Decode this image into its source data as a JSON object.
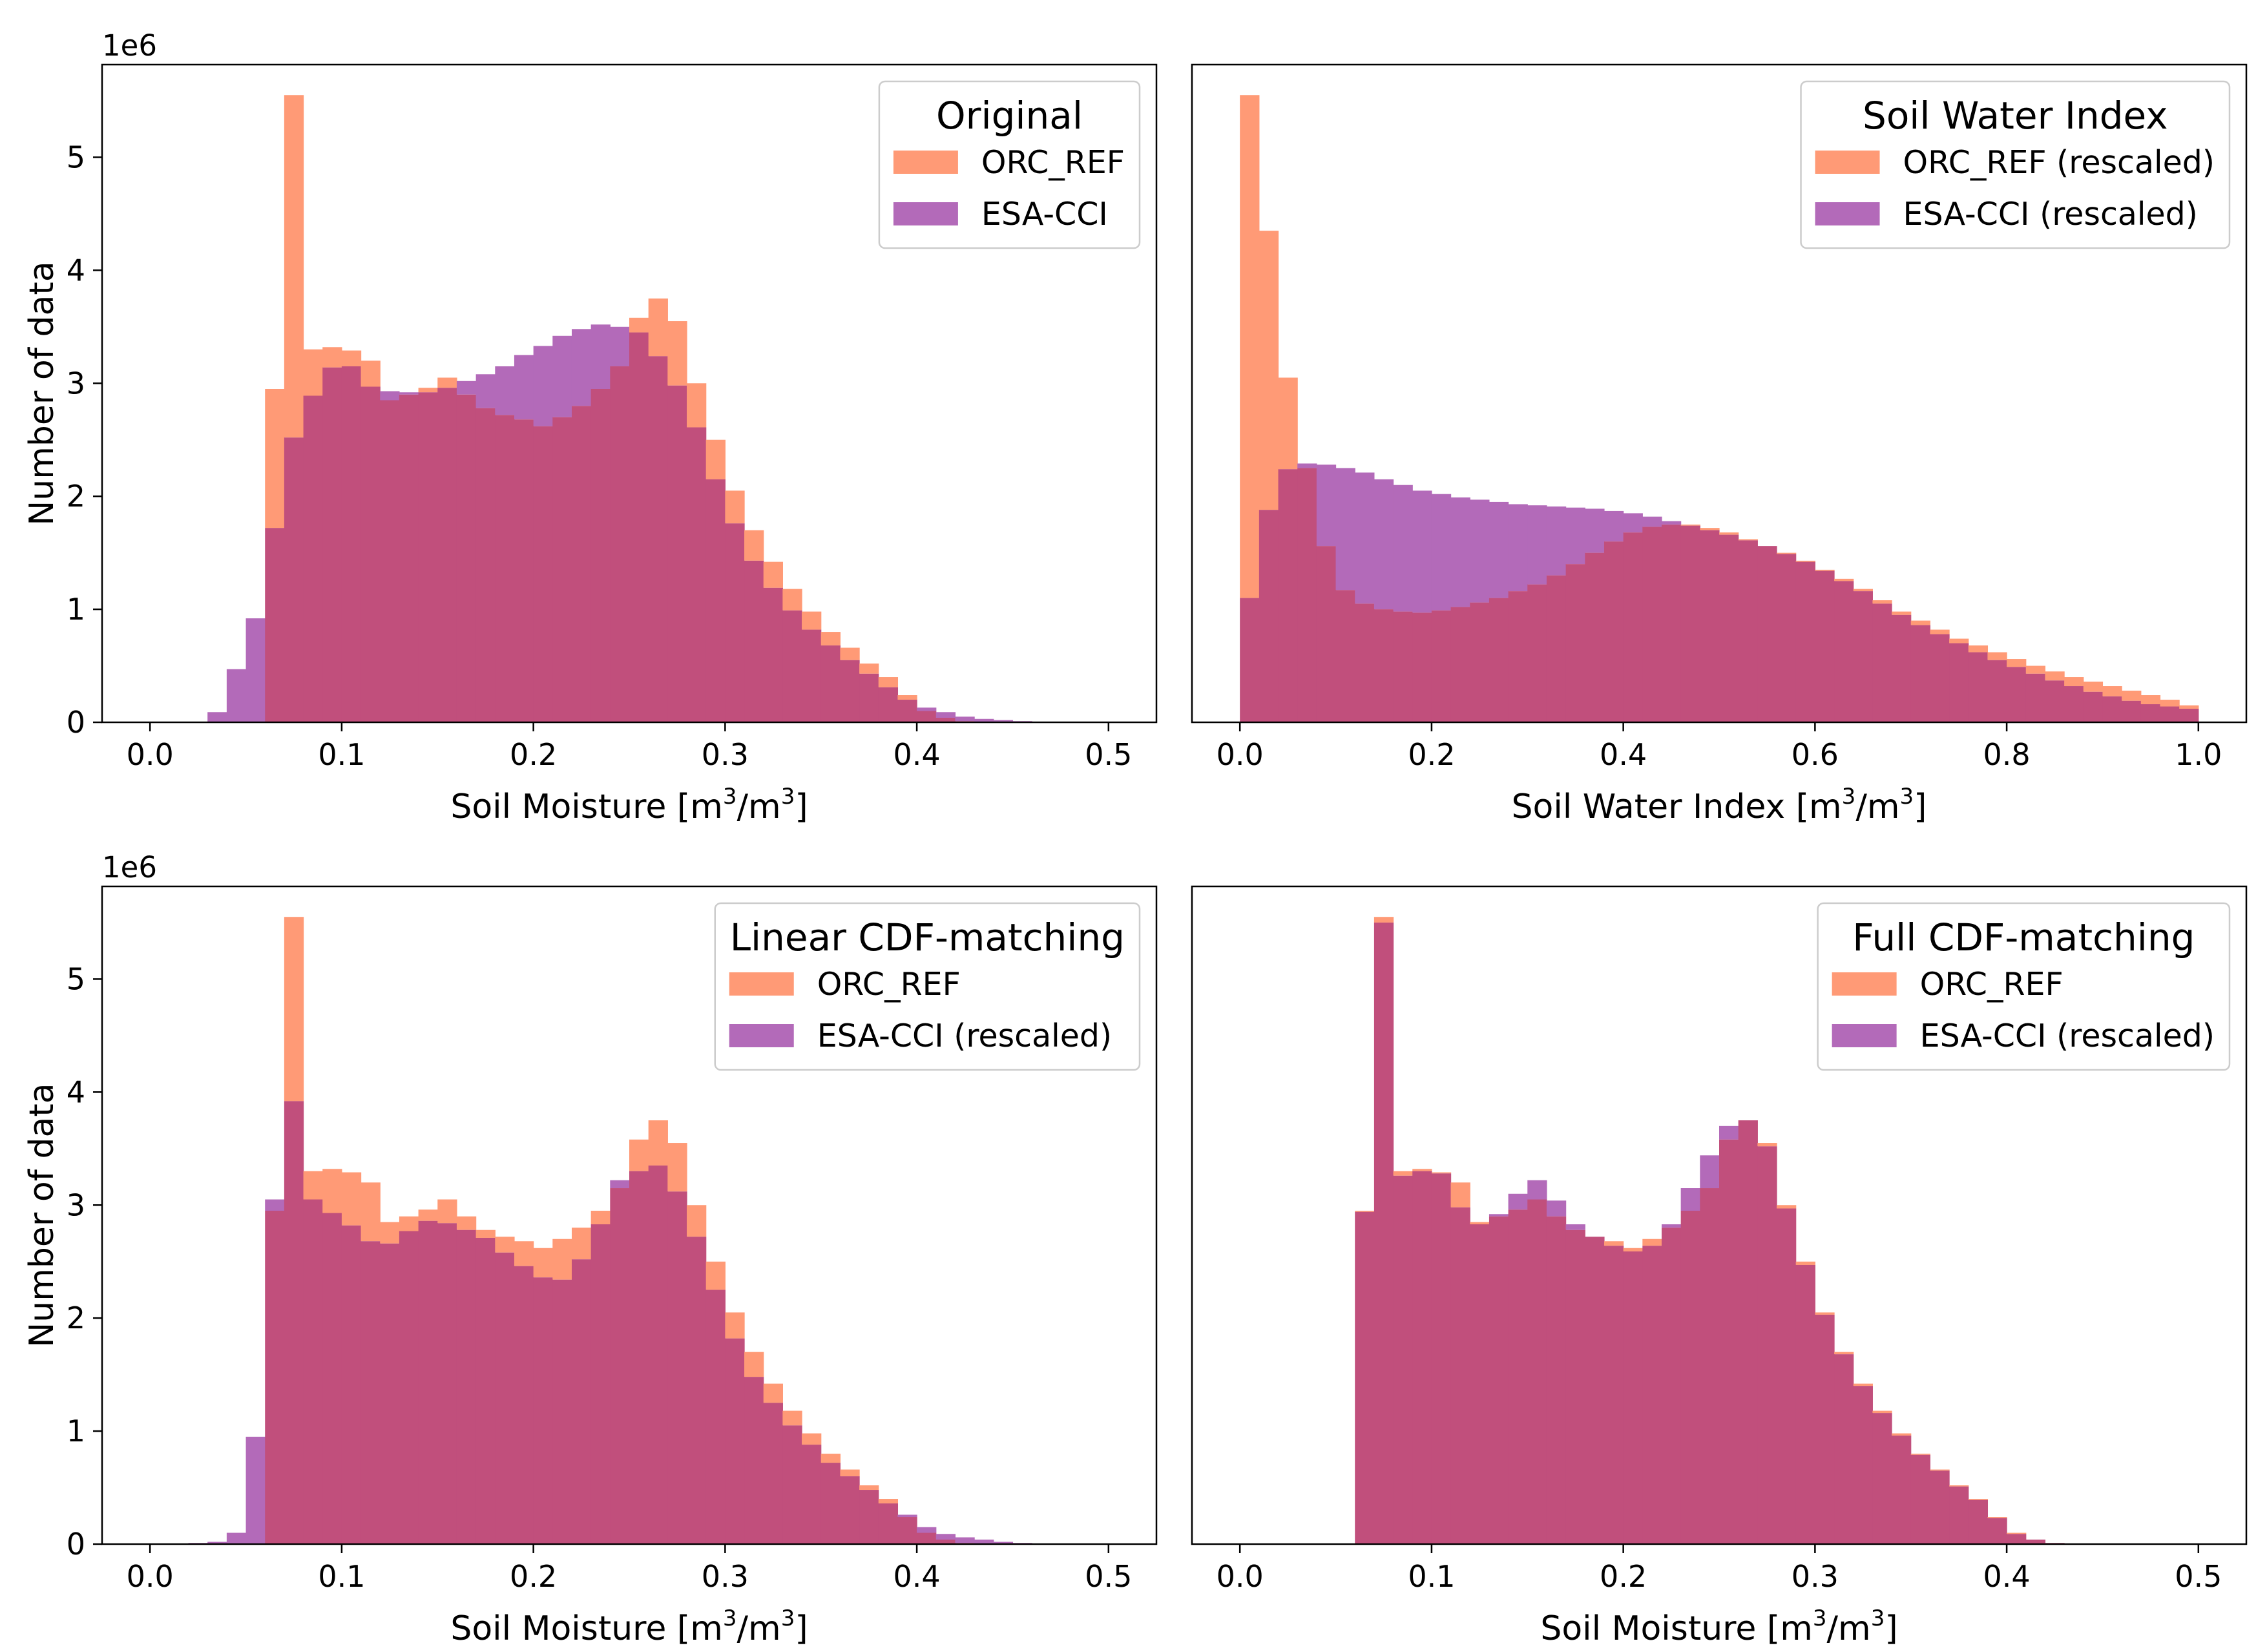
{
  "figure": {
    "ylabel": "Number of data"
  },
  "colors": {
    "orc": "#FF9A76",
    "esa": "#B36AB9",
    "overlap": "#C14F7C",
    "frame": "#000000"
  },
  "chart_data": [
    {
      "id": "original",
      "type": "histogram",
      "title": "Original",
      "xlabel": "Soil Moisture [m3/m3]",
      "xlabel_main": "Soil Moisture [m",
      "xlabel_mid": "/m",
      "xlabel_end": "]",
      "xlabel_sup": "3",
      "ylabel": "Number of data",
      "y_offset_label": "1e6",
      "xlim": [
        -0.025,
        0.525
      ],
      "ylim": [
        0,
        5.82
      ],
      "xticks": [
        0.0,
        0.1,
        0.2,
        0.3,
        0.4,
        0.5
      ],
      "xtick_labels": [
        "0.0",
        "0.1",
        "0.2",
        "0.3",
        "0.4",
        "0.5"
      ],
      "yticks": [
        0,
        1,
        2,
        3,
        4,
        5
      ],
      "ytick_labels": [
        "0",
        "1",
        "2",
        "3",
        "4",
        "5"
      ],
      "legend": {
        "title": "Original",
        "entries": [
          "ORC_REF",
          "ESA-CCI"
        ],
        "location": "upper right"
      },
      "bins": {
        "start": 0.0,
        "width": 0.01
      },
      "series": [
        {
          "name": "ORC_REF",
          "values": [
            0,
            0,
            0,
            0,
            0,
            0,
            2.95,
            5.55,
            3.3,
            3.32,
            3.29,
            3.2,
            2.85,
            2.9,
            2.96,
            3.05,
            2.9,
            2.78,
            2.72,
            2.68,
            2.62,
            2.7,
            2.8,
            2.95,
            3.15,
            3.58,
            3.75,
            3.55,
            3.0,
            2.5,
            2.05,
            1.7,
            1.42,
            1.18,
            0.98,
            0.8,
            0.66,
            0.52,
            0.4,
            0.24,
            0.1,
            0.04,
            0.01,
            0,
            0,
            0,
            0,
            0,
            0,
            0
          ]
        },
        {
          "name": "ESA-CCI",
          "values": [
            0,
            0,
            0,
            0.09,
            0.47,
            0.92,
            1.72,
            2.52,
            2.89,
            3.14,
            3.15,
            2.97,
            2.93,
            2.92,
            2.92,
            2.96,
            3.02,
            3.08,
            3.15,
            3.25,
            3.33,
            3.42,
            3.48,
            3.52,
            3.5,
            3.45,
            3.24,
            2.98,
            2.61,
            2.15,
            1.76,
            1.43,
            1.19,
            0.99,
            0.82,
            0.68,
            0.55,
            0.43,
            0.31,
            0.2,
            0.13,
            0.09,
            0.05,
            0.03,
            0.02,
            0.01,
            0,
            0,
            0,
            0
          ]
        }
      ]
    },
    {
      "id": "swi",
      "type": "histogram",
      "title": "Soil Water Index",
      "xlabel": "Soil Water Index [m3/m3]",
      "xlabel_main": "Soil Water Index [m",
      "xlabel_mid": "/m",
      "xlabel_end": "]",
      "xlabel_sup": "3",
      "ylabel": "",
      "y_offset_label": "",
      "xlim": [
        -0.05,
        1.05
      ],
      "ylim": [
        0,
        5.82
      ],
      "xticks": [
        0.0,
        0.2,
        0.4,
        0.6,
        0.8,
        1.0
      ],
      "xtick_labels": [
        "0.0",
        "0.2",
        "0.4",
        "0.6",
        "0.8",
        "1.0"
      ],
      "yticks": [],
      "ytick_labels": [],
      "legend": {
        "title": "Soil Water Index",
        "entries": [
          "ORC_REF (rescaled)",
          "ESA-CCI (rescaled)"
        ],
        "location": "upper right"
      },
      "bins": {
        "start": 0.0,
        "width": 0.02
      },
      "series": [
        {
          "name": "ORC_REF (rescaled)",
          "values": [
            5.55,
            4.35,
            3.05,
            2.25,
            1.56,
            1.17,
            1.05,
            1.0,
            0.98,
            0.97,
            0.99,
            1.02,
            1.06,
            1.1,
            1.16,
            1.22,
            1.3,
            1.4,
            1.5,
            1.6,
            1.68,
            1.73,
            1.75,
            1.75,
            1.72,
            1.68,
            1.62,
            1.56,
            1.5,
            1.43,
            1.35,
            1.27,
            1.18,
            1.08,
            0.98,
            0.9,
            0.82,
            0.74,
            0.68,
            0.62,
            0.56,
            0.5,
            0.45,
            0.4,
            0.36,
            0.32,
            0.28,
            0.24,
            0.2,
            0.15
          ]
        },
        {
          "name": "ESA-CCI (rescaled)",
          "values": [
            1.1,
            1.88,
            2.24,
            2.29,
            2.28,
            2.25,
            2.21,
            2.15,
            2.1,
            2.05,
            2.02,
            1.99,
            1.97,
            1.95,
            1.93,
            1.92,
            1.91,
            1.9,
            1.89,
            1.87,
            1.85,
            1.82,
            1.78,
            1.74,
            1.7,
            1.66,
            1.61,
            1.56,
            1.49,
            1.42,
            1.34,
            1.25,
            1.16,
            1.05,
            0.95,
            0.86,
            0.78,
            0.7,
            0.62,
            0.55,
            0.49,
            0.43,
            0.37,
            0.32,
            0.27,
            0.23,
            0.19,
            0.16,
            0.14,
            0.12
          ]
        }
      ]
    },
    {
      "id": "linear",
      "type": "histogram",
      "title": "Linear CDF-matching",
      "xlabel": "Soil Moisture [m3/m3]",
      "xlabel_main": "Soil Moisture [m",
      "xlabel_mid": "/m",
      "xlabel_end": "]",
      "xlabel_sup": "3",
      "ylabel": "Number of data",
      "y_offset_label": "1e6",
      "xlim": [
        -0.025,
        0.525
      ],
      "ylim": [
        0,
        5.82
      ],
      "xticks": [
        0.0,
        0.1,
        0.2,
        0.3,
        0.4,
        0.5
      ],
      "xtick_labels": [
        "0.0",
        "0.1",
        "0.2",
        "0.3",
        "0.4",
        "0.5"
      ],
      "yticks": [
        0,
        1,
        2,
        3,
        4,
        5
      ],
      "ytick_labels": [
        "0",
        "1",
        "2",
        "3",
        "4",
        "5"
      ],
      "legend": {
        "title": "Linear CDF-matching",
        "entries": [
          "ORC_REF",
          "ESA-CCI (rescaled)"
        ],
        "location": "upper right"
      },
      "bins": {
        "start": 0.0,
        "width": 0.01
      },
      "series": [
        {
          "name": "ORC_REF",
          "values": [
            0,
            0,
            0,
            0,
            0,
            0,
            2.95,
            5.55,
            3.3,
            3.32,
            3.29,
            3.2,
            2.85,
            2.9,
            2.96,
            3.05,
            2.9,
            2.78,
            2.72,
            2.68,
            2.62,
            2.7,
            2.8,
            2.95,
            3.15,
            3.58,
            3.75,
            3.55,
            3.0,
            2.5,
            2.05,
            1.7,
            1.42,
            1.18,
            0.98,
            0.8,
            0.66,
            0.52,
            0.4,
            0.24,
            0.1,
            0.04,
            0.01,
            0,
            0,
            0,
            0,
            0,
            0,
            0
          ]
        },
        {
          "name": "ESA-CCI (rescaled)",
          "values": [
            0,
            0,
            0.01,
            0.02,
            0.1,
            0.95,
            3.05,
            3.92,
            3.05,
            2.93,
            2.82,
            2.68,
            2.66,
            2.77,
            2.86,
            2.84,
            2.78,
            2.71,
            2.58,
            2.46,
            2.36,
            2.34,
            2.52,
            2.83,
            3.22,
            3.3,
            3.35,
            3.12,
            2.72,
            2.25,
            1.82,
            1.48,
            1.25,
            1.05,
            0.88,
            0.72,
            0.6,
            0.48,
            0.36,
            0.26,
            0.15,
            0.09,
            0.06,
            0.04,
            0.02,
            0.01,
            0.005,
            0,
            0,
            0
          ]
        }
      ]
    },
    {
      "id": "full",
      "type": "histogram",
      "title": "Full CDF-matching",
      "xlabel": "Soil Moisture [m3/m3]",
      "xlabel_main": "Soil Moisture [m",
      "xlabel_mid": "/m",
      "xlabel_end": "]",
      "xlabel_sup": "3",
      "ylabel": "",
      "y_offset_label": "",
      "xlim": [
        -0.025,
        0.525
      ],
      "ylim": [
        0,
        5.82
      ],
      "xticks": [
        0.0,
        0.1,
        0.2,
        0.3,
        0.4,
        0.5
      ],
      "xtick_labels": [
        "0.0",
        "0.1",
        "0.2",
        "0.3",
        "0.4",
        "0.5"
      ],
      "yticks": [],
      "ytick_labels": [],
      "legend": {
        "title": "Full CDF-matching",
        "entries": [
          "ORC_REF",
          "ESA-CCI (rescaled)"
        ],
        "location": "upper right"
      },
      "bins": {
        "start": 0.0,
        "width": 0.01
      },
      "series": [
        {
          "name": "ORC_REF",
          "values": [
            0,
            0,
            0,
            0,
            0,
            0,
            2.95,
            5.55,
            3.3,
            3.32,
            3.29,
            3.2,
            2.85,
            2.9,
            2.96,
            3.05,
            2.9,
            2.78,
            2.72,
            2.68,
            2.62,
            2.7,
            2.8,
            2.95,
            3.15,
            3.58,
            3.75,
            3.55,
            3.0,
            2.5,
            2.05,
            1.7,
            1.42,
            1.18,
            0.98,
            0.8,
            0.66,
            0.52,
            0.4,
            0.24,
            0.1,
            0.04,
            0.01,
            0,
            0,
            0,
            0,
            0,
            0,
            0
          ]
        },
        {
          "name": "ESA-CCI (rescaled)",
          "values": [
            0,
            0,
            0,
            0,
            0,
            0,
            2.94,
            5.5,
            3.26,
            3.3,
            3.28,
            2.98,
            2.83,
            2.92,
            3.1,
            3.22,
            3.04,
            2.83,
            2.72,
            2.64,
            2.59,
            2.64,
            2.83,
            3.15,
            3.44,
            3.7,
            3.75,
            3.52,
            2.97,
            2.47,
            2.03,
            1.68,
            1.4,
            1.16,
            0.96,
            0.79,
            0.65,
            0.51,
            0.39,
            0.23,
            0.09,
            0.04,
            0.01,
            0,
            0,
            0,
            0,
            0,
            0,
            0
          ]
        }
      ]
    }
  ]
}
